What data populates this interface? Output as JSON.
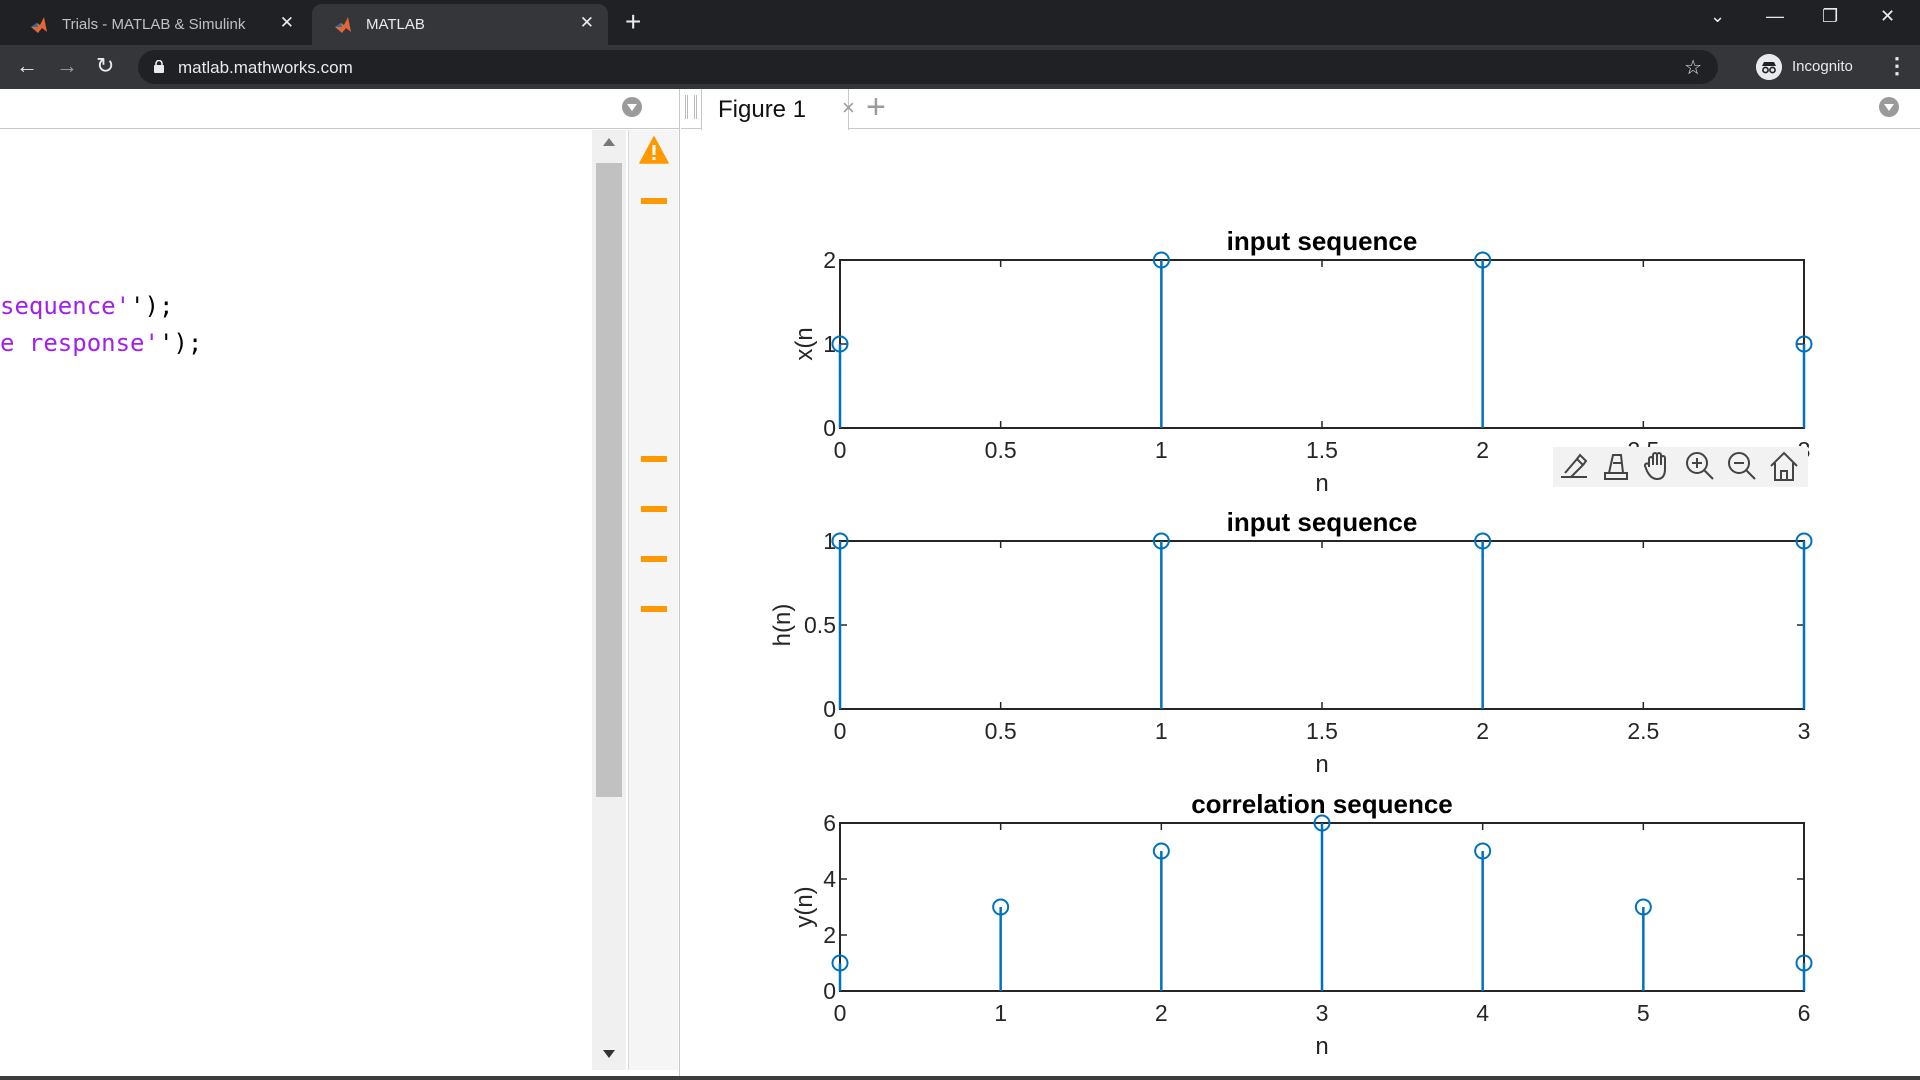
{
  "browser": {
    "tabs": [
      {
        "title": "Trials - MATLAB & Simulink",
        "active": false
      },
      {
        "title": "MATLAB",
        "active": true
      }
    ],
    "new_tab": "+",
    "close_glyph": "✕",
    "url": "matlab.mathworks.com",
    "profile_label": "Incognito",
    "window_controls": {
      "dropdown": "⌄",
      "minimize": "—",
      "restore": "❐",
      "close": "✕"
    },
    "nav": {
      "back": "←",
      "forward": "→",
      "reload": "↻",
      "star": "☆",
      "menu": "⋮"
    }
  },
  "editor": {
    "lines": [
      {
        "text": "sequence",
        "suffix": "');"
      },
      {
        "text": "e response",
        "suffix": "');"
      }
    ],
    "warning_color": "#ff9900"
  },
  "figure": {
    "tab_label": "Figure 1",
    "tab_close": "×",
    "add_label": "+",
    "toolbar_icons": [
      "brush-icon",
      "data-tips-icon",
      "pan-hand-icon",
      "zoom-in-icon",
      "zoom-out-icon",
      "home-icon"
    ],
    "stem_color": "#0072bd",
    "axes_color": "#262626"
  },
  "chart_data": [
    {
      "type": "stem",
      "title": "input sequence",
      "xlabel": "n",
      "ylabel": "x(n",
      "x": [
        0,
        1,
        2,
        3
      ],
      "y": [
        1,
        2,
        2,
        1
      ],
      "xlim": [
        0,
        3
      ],
      "ylim": [
        0,
        2
      ],
      "xticks": [
        "0",
        "0.5",
        "1",
        "1.5",
        "2",
        "2.5",
        "3"
      ],
      "yticks": [
        "0",
        "1",
        "2"
      ],
      "grid": false
    },
    {
      "type": "stem",
      "title": "input sequence",
      "xlabel": "n",
      "ylabel": "h(n)",
      "x": [
        0,
        1,
        2,
        3
      ],
      "y": [
        1,
        1,
        1,
        1
      ],
      "xlim": [
        0,
        3
      ],
      "ylim": [
        0,
        1
      ],
      "xticks": [
        "0",
        "0.5",
        "1",
        "1.5",
        "2",
        "2.5",
        "3"
      ],
      "yticks": [
        "0",
        "0.5",
        "1"
      ],
      "grid": false
    },
    {
      "type": "stem",
      "title": "correlation sequence",
      "xlabel": "n",
      "ylabel": "y(n)",
      "x": [
        0,
        1,
        2,
        3,
        4,
        5,
        6
      ],
      "y": [
        1,
        3,
        5,
        6,
        5,
        3,
        1
      ],
      "xlim": [
        0,
        6
      ],
      "ylim": [
        0,
        6
      ],
      "xticks": [
        "0",
        "1",
        "2",
        "3",
        "4",
        "5",
        "6"
      ],
      "yticks": [
        "0",
        "2",
        "4",
        "6"
      ],
      "grid": false
    }
  ]
}
